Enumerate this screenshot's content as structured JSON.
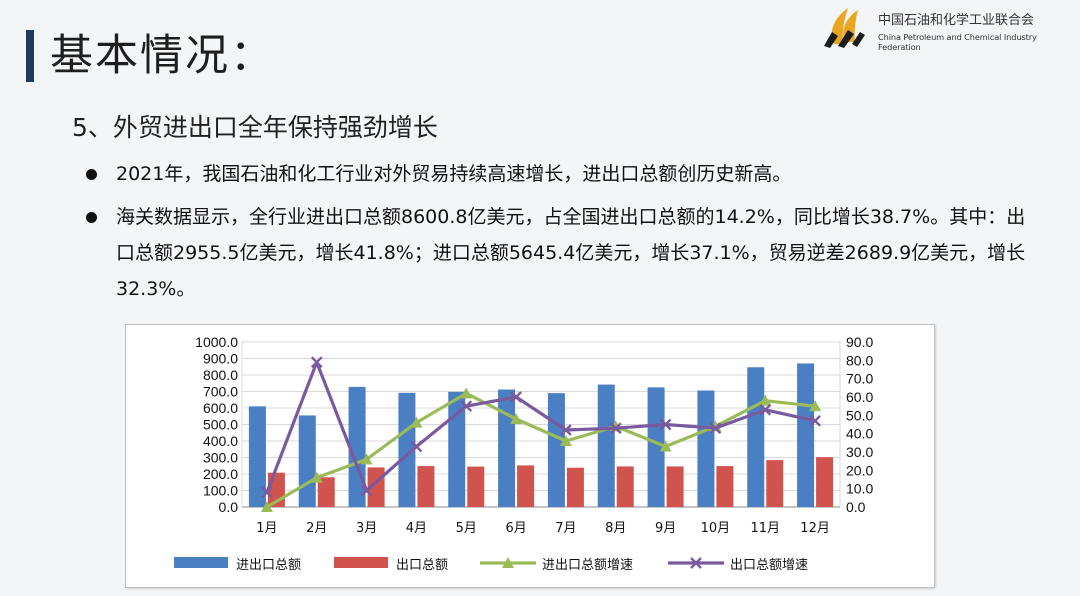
{
  "header": {
    "title": "基本情况：",
    "org_name_cn": "中国石油和化学工业联合会",
    "org_name_en": "China Petroleum and Chemical Industry Federation"
  },
  "section": {
    "subtitle": "5、外贸进出口全年保持强劲增长",
    "bullets": [
      "2021年，我国石油和化工行业对外贸易持续高速增长，进出口总额创历史新高。",
      "海关数据显示，全行业进出口总额8600.8亿美元，占全国进出口总额的14.2%，同比增长38.7%。其中：出口总额2955.5亿美元，增长41.8%；进口总额5645.4亿美元，增长37.1%，贸易逆差2689.9亿美元，增长32.3%。"
    ]
  },
  "colors": {
    "accent_bar": "#1f3b5a",
    "logo_gold": "#e8a623",
    "logo_dark": "#1c1c1c"
  },
  "chart_data": {
    "type": "bar",
    "combo": "bar+line",
    "categories": [
      "1月",
      "2月",
      "3月",
      "4月",
      "5月",
      "6月",
      "7月",
      "8月",
      "9月",
      "10月",
      "11月",
      "12月"
    ],
    "series": [
      {
        "name": "进出口总额",
        "type": "bar",
        "axis": "left",
        "color": "#4a7fc4",
        "values": [
          610,
          555,
          728,
          692,
          698,
          712,
          690,
          742,
          725,
          706,
          847,
          870
        ]
      },
      {
        "name": "出口总额",
        "type": "bar",
        "axis": "left",
        "color": "#d0534e",
        "values": [
          208,
          180,
          240,
          248,
          245,
          252,
          238,
          246,
          246,
          248,
          284,
          302
        ]
      },
      {
        "name": "进出口总额增速",
        "type": "line",
        "axis": "right",
        "marker": "triangle",
        "color": "#9bbb59",
        "values": [
          0,
          16,
          26,
          46,
          62,
          48,
          36,
          44,
          33,
          44,
          58,
          55
        ]
      },
      {
        "name": "出口总额增速",
        "type": "line",
        "axis": "right",
        "marker": "x",
        "color": "#7a5a9e",
        "values": [
          8,
          79,
          9,
          33,
          55,
          60,
          42,
          43,
          45,
          43,
          53,
          47
        ]
      }
    ],
    "y_left": {
      "min": 0,
      "max": 1000,
      "step": 100,
      "tick_labels": [
        "0.0",
        "100.0",
        "200.0",
        "300.0",
        "400.0",
        "500.0",
        "600.0",
        "700.0",
        "800.0",
        "900.0",
        "1000.0"
      ]
    },
    "y_right": {
      "min": 0,
      "max": 90,
      "step": 10,
      "tick_labels": [
        "0.0",
        "10.0",
        "20.0",
        "30.0",
        "40.0",
        "50.0",
        "60.0",
        "70.0",
        "80.0",
        "90.0"
      ]
    },
    "grid": true,
    "legend": "bottom"
  }
}
